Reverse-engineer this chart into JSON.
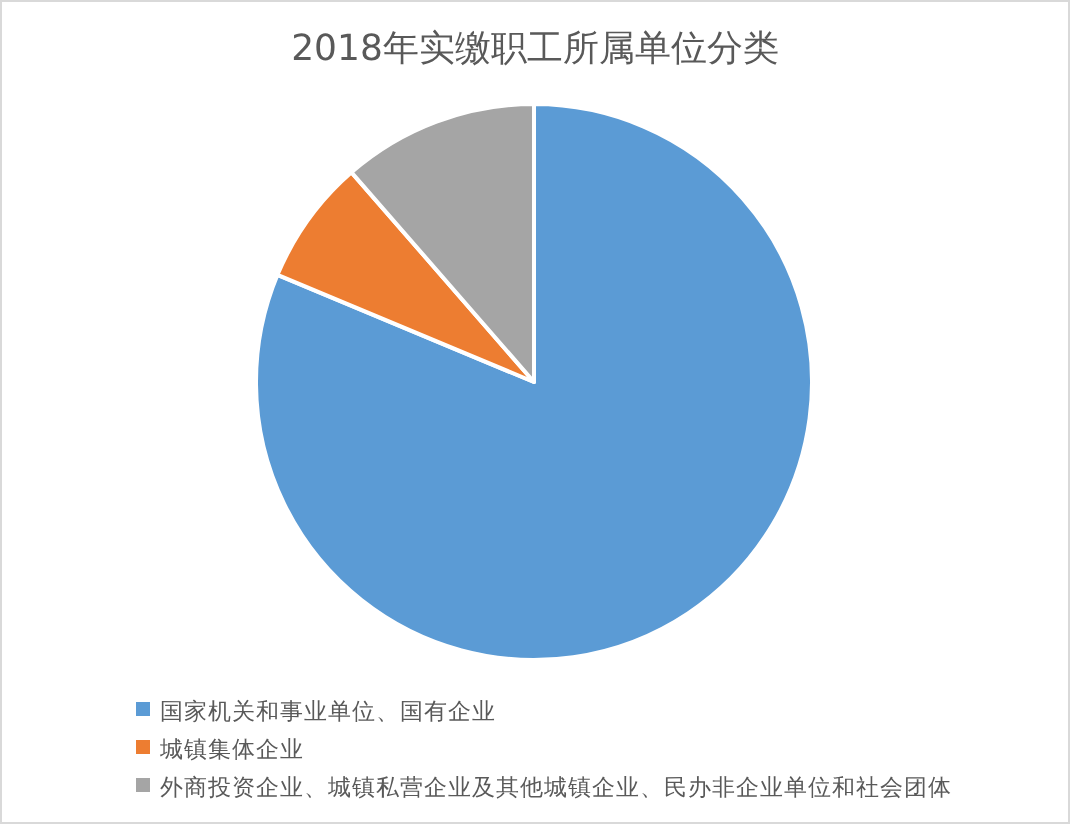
{
  "chart_data": {
    "type": "pie",
    "title": "2018年实缴职工所属单位分类",
    "categories": [
      "国家机关和事业单位、国有企业",
      "城镇集体企业",
      "外商投资企业、城镇私营企业及其他城镇企业、民办非企业单位和社会团体"
    ],
    "values": [
      81.3,
      7.3,
      11.4
    ],
    "colors": [
      "#5b9bd5",
      "#ed7d31",
      "#a5a5a5"
    ],
    "legend": "bottom"
  }
}
